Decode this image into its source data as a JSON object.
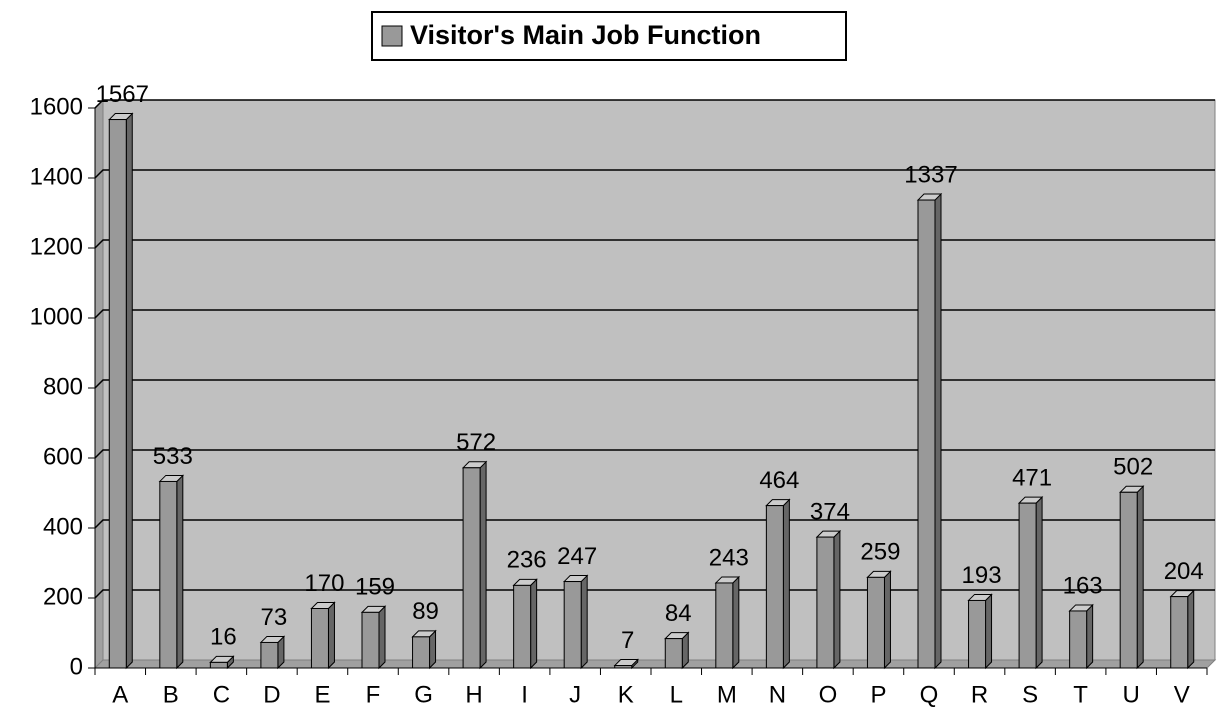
{
  "chart_data": {
    "type": "bar",
    "categories": [
      "A",
      "B",
      "C",
      "D",
      "E",
      "F",
      "G",
      "H",
      "I",
      "J",
      "K",
      "L",
      "M",
      "N",
      "O",
      "P",
      "Q",
      "R",
      "S",
      "T",
      "U",
      "V"
    ],
    "series": [
      {
        "name": "Visitor's Main Job Function",
        "color": "#999999",
        "values": [
          1567,
          533,
          16,
          73,
          170,
          159,
          89,
          572,
          236,
          247,
          7,
          84,
          243,
          464,
          374,
          259,
          1337,
          193,
          471,
          163,
          502,
          204
        ]
      }
    ],
    "ylim": [
      0,
      1600
    ],
    "yticks": [
      0,
      200,
      400,
      600,
      800,
      1000,
      1200,
      1400,
      1600
    ],
    "grid": true,
    "legend": "top"
  }
}
